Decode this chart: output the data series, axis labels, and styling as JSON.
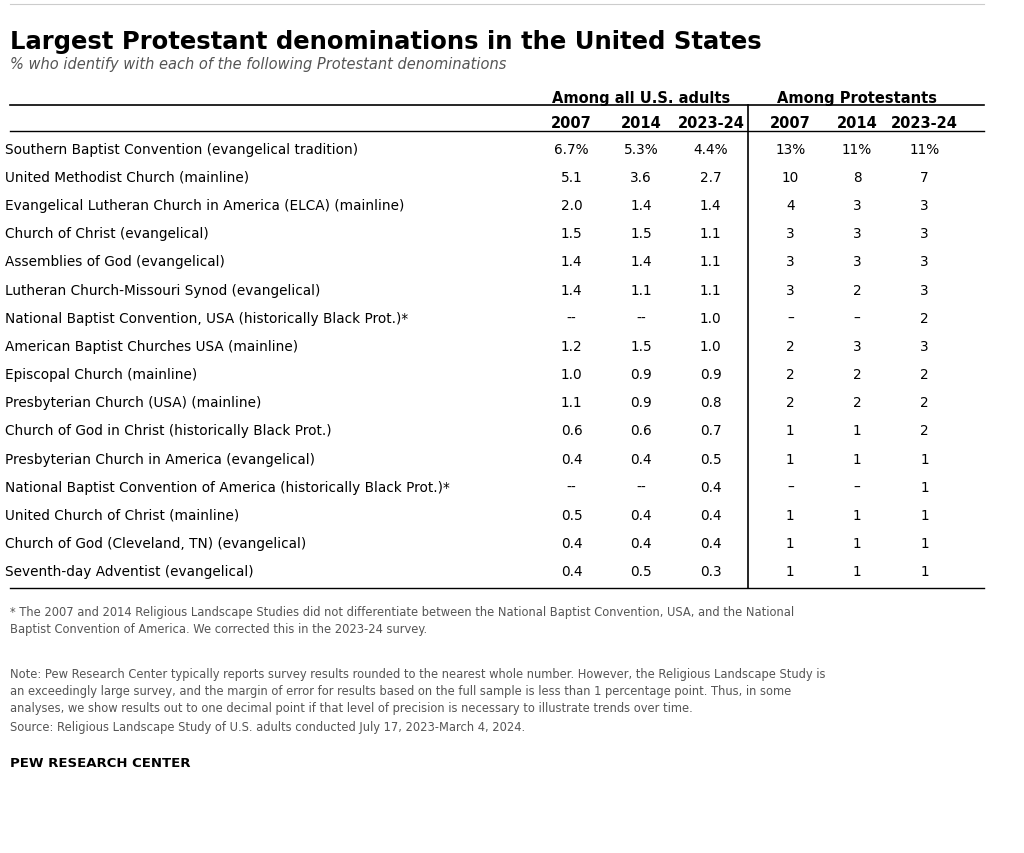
{
  "title": "Largest Protestant denominations in the United States",
  "subtitle": "% who identify with each of the following Protestant denominations",
  "col_group1_header": "Among all U.S. adults",
  "col_group2_header": "Among Protestants",
  "col_years": [
    "2007",
    "2014",
    "2023-24"
  ],
  "rows": [
    {
      "label": "Southern Baptist Convention (evangelical tradition)",
      "adults": [
        "6.7%",
        "5.3%",
        "4.4%"
      ],
      "protestants": [
        "13%",
        "11%",
        "11%"
      ]
    },
    {
      "label": "United Methodist Church (mainline)",
      "adults": [
        "5.1",
        "3.6",
        "2.7"
      ],
      "protestants": [
        "10",
        "8",
        "7"
      ]
    },
    {
      "label": "Evangelical Lutheran Church in America (ELCA) (mainline)",
      "adults": [
        "2.0",
        "1.4",
        "1.4"
      ],
      "protestants": [
        "4",
        "3",
        "3"
      ]
    },
    {
      "label": "Church of Christ (evangelical)",
      "adults": [
        "1.5",
        "1.5",
        "1.1"
      ],
      "protestants": [
        "3",
        "3",
        "3"
      ]
    },
    {
      "label": "Assemblies of God (evangelical)",
      "adults": [
        "1.4",
        "1.4",
        "1.1"
      ],
      "protestants": [
        "3",
        "3",
        "3"
      ]
    },
    {
      "label": "Lutheran Church-Missouri Synod (evangelical)",
      "adults": [
        "1.4",
        "1.1",
        "1.1"
      ],
      "protestants": [
        "3",
        "2",
        "3"
      ]
    },
    {
      "label": "National Baptist Convention, USA (historically Black Prot.)*",
      "adults": [
        "--",
        "--",
        "1.0"
      ],
      "protestants": [
        "–",
        "–",
        "2"
      ]
    },
    {
      "label": "American Baptist Churches USA (mainline)",
      "adults": [
        "1.2",
        "1.5",
        "1.0"
      ],
      "protestants": [
        "2",
        "3",
        "3"
      ]
    },
    {
      "label": "Episcopal Church (mainline)",
      "adults": [
        "1.0",
        "0.9",
        "0.9"
      ],
      "protestants": [
        "2",
        "2",
        "2"
      ]
    },
    {
      "label": "Presbyterian Church (USA) (mainline)",
      "adults": [
        "1.1",
        "0.9",
        "0.8"
      ],
      "protestants": [
        "2",
        "2",
        "2"
      ]
    },
    {
      "label": "Church of God in Christ (historically Black Prot.)",
      "adults": [
        "0.6",
        "0.6",
        "0.7"
      ],
      "protestants": [
        "1",
        "1",
        "2"
      ]
    },
    {
      "label": "Presbyterian Church in America (evangelical)",
      "adults": [
        "0.4",
        "0.4",
        "0.5"
      ],
      "protestants": [
        "1",
        "1",
        "1"
      ]
    },
    {
      "label": "National Baptist Convention of America (historically Black Prot.)*",
      "adults": [
        "--",
        "--",
        "0.4"
      ],
      "protestants": [
        "–",
        "–",
        "1"
      ]
    },
    {
      "label": "United Church of Christ (mainline)",
      "adults": [
        "0.5",
        "0.4",
        "0.4"
      ],
      "protestants": [
        "1",
        "1",
        "1"
      ]
    },
    {
      "label": "Church of God (Cleveland, TN) (evangelical)",
      "adults": [
        "0.4",
        "0.4",
        "0.4"
      ],
      "protestants": [
        "1",
        "1",
        "1"
      ]
    },
    {
      "label": "Seventh-day Adventist (evangelical)",
      "adults": [
        "0.4",
        "0.5",
        "0.3"
      ],
      "protestants": [
        "1",
        "1",
        "1"
      ]
    }
  ],
  "footnote_star": "* The 2007 and 2014 Religious Landscape Studies did not differentiate between the National Baptist Convention, USA, and the National\nBaptist Convention of America. We corrected this in the 2023-24 survey.",
  "footnote_note": "Note: Pew Research Center typically reports survey results rounded to the nearest whole number. However, the Religious Landscape Study is\nan exceedingly large survey, and the margin of error for results based on the full sample is less than 1 percentage point. Thus, in some\nanalyses, we show results out to one decimal point if that level of precision is necessary to illustrate trends over time.",
  "footnote_source": "Source: Religious Landscape Study of U.S. adults conducted July 17, 2023-March 4, 2024.",
  "pew_label": "PEW RESEARCH CENTER",
  "bg_color": "#ffffff",
  "text_color": "#000000",
  "subtitle_color": "#555555",
  "footnote_color": "#555555"
}
